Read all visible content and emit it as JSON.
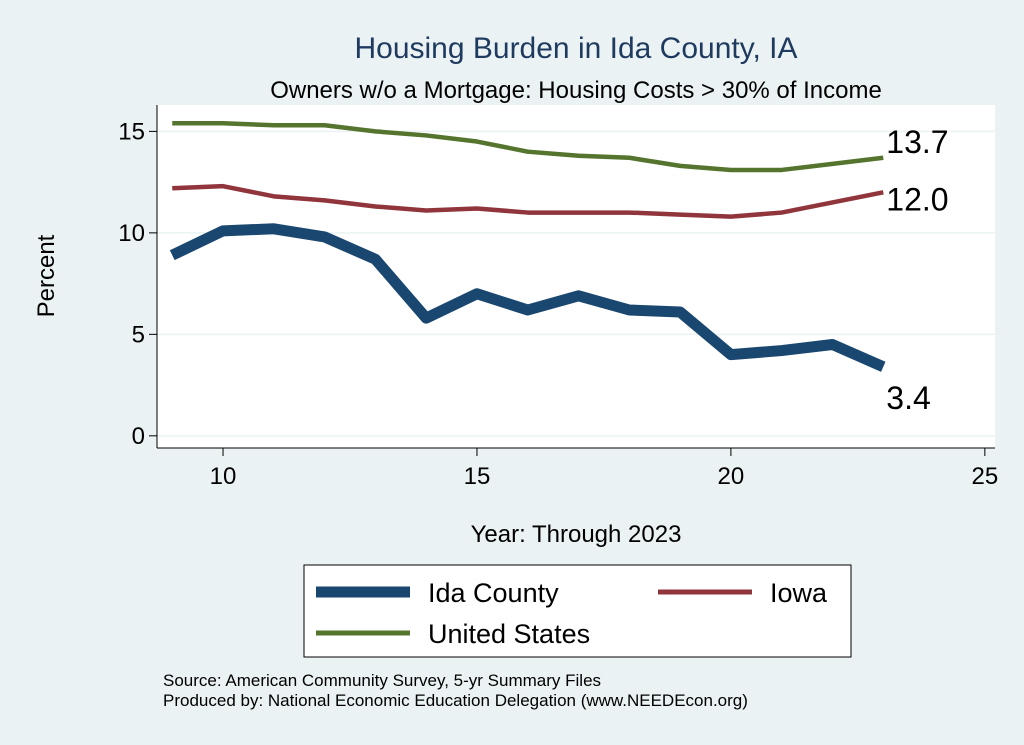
{
  "chart_data": {
    "type": "line",
    "title": "Housing Burden in Ida County, IA",
    "subtitle": "Owners w/o a Mortgage: Housing Costs > 30% of Income",
    "xlabel": "Year: Through 2023",
    "ylabel": "Percent",
    "xlim": [
      8.7,
      25.2
    ],
    "ylim": [
      -0.6,
      16.3
    ],
    "xticks": [
      10,
      15,
      20,
      25
    ],
    "yticks": [
      0,
      5,
      10,
      15
    ],
    "grid": true,
    "legend_position": "bottom",
    "x": [
      9,
      10,
      11,
      12,
      13,
      14,
      15,
      16,
      17,
      18,
      19,
      20,
      21,
      22,
      23
    ],
    "series": [
      {
        "name": "Ida County",
        "color": "#1a476f",
        "values": [
          8.9,
          10.1,
          10.2,
          9.8,
          8.7,
          5.8,
          7.0,
          6.2,
          6.9,
          6.2,
          6.1,
          4.0,
          4.2,
          4.5,
          3.4
        ],
        "end_label": "3.4"
      },
      {
        "name": "Iowa",
        "color": "#90353b",
        "values": [
          12.2,
          12.3,
          11.8,
          11.6,
          11.3,
          11.1,
          11.2,
          11.0,
          11.0,
          11.0,
          10.9,
          10.8,
          11.0,
          11.5,
          12.0
        ],
        "end_label": "12.0"
      },
      {
        "name": "United States",
        "color": "#55752f",
        "values": [
          15.4,
          15.4,
          15.3,
          15.3,
          15.0,
          14.8,
          14.5,
          14.0,
          13.8,
          13.7,
          13.3,
          13.1,
          13.1,
          13.4,
          13.7
        ],
        "end_label": "13.7"
      }
    ]
  },
  "notes": {
    "source": "Source: American Community Survey, 5-yr Summary Files",
    "produced_by": "Produced by: National Economic Education Delegation (www.NEEDEcon.org)"
  }
}
